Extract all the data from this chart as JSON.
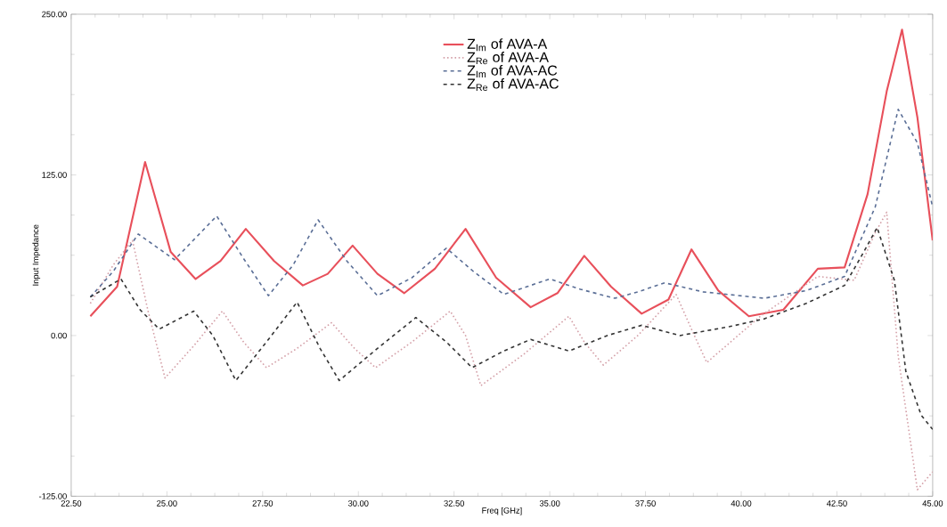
{
  "chart_data": {
    "type": "line",
    "xlabel": "Freq [GHz]",
    "ylabel": "Input Impedance",
    "xlim": [
      22.5,
      45
    ],
    "ylim": [
      -125,
      250
    ],
    "xticks": [
      {
        "value": 22.5,
        "label": "22.50"
      },
      {
        "value": 25,
        "label": "25.00"
      },
      {
        "value": 27.5,
        "label": "27.50"
      },
      {
        "value": 30,
        "label": "30.00"
      },
      {
        "value": 32.5,
        "label": "32.50"
      },
      {
        "value": 35,
        "label": "35.00"
      },
      {
        "value": 37.5,
        "label": "37.50"
      },
      {
        "value": 40,
        "label": "40.00"
      },
      {
        "value": 42.5,
        "label": "42.50"
      },
      {
        "value": 45,
        "label": "45.00"
      }
    ],
    "yticks": [
      {
        "value": -125,
        "label": "-125.00"
      },
      {
        "value": 0,
        "label": "0.00"
      },
      {
        "value": 125,
        "label": "125.00"
      },
      {
        "value": 250,
        "label": "250.00"
      }
    ],
    "legend": "top",
    "grid": false,
    "marker": "none",
    "series": [
      {
        "name": "Z$_{Im}$ of AVA-A",
        "color": "#e8505b",
        "line_style": "solid",
        "x": [
          23.0,
          23.7,
          24.43,
          25.1,
          25.75,
          26.4,
          27.06,
          27.8,
          28.55,
          29.2,
          29.85,
          30.5,
          31.2,
          32.0,
          32.8,
          33.6,
          34.5,
          35.2,
          35.9,
          36.6,
          37.4,
          38.1,
          38.7,
          39.4,
          40.2,
          41.1,
          42.0,
          42.7,
          43.3,
          43.8,
          44.2,
          44.6,
          45.0
        ],
        "values": [
          15,
          38,
          135,
          65,
          44,
          58,
          83,
          58,
          39,
          48,
          70,
          48,
          33,
          52,
          83,
          45,
          22,
          33,
          62,
          38,
          17,
          28,
          67,
          35,
          15,
          20,
          52,
          53,
          110,
          190,
          238,
          170,
          74
        ]
      },
      {
        "name": "Z$_{Re}$ of AVA-A",
        "color": "#d4a0a8",
        "line_style": "dotted",
        "x": [
          23.0,
          23.6,
          24.1,
          24.5,
          24.95,
          25.7,
          26.45,
          27.0,
          27.6,
          28.4,
          29.3,
          29.9,
          30.45,
          31.4,
          32.4,
          32.8,
          33.2,
          34.3,
          35.5,
          35.9,
          36.4,
          37.3,
          38.3,
          38.7,
          39.1,
          40.5,
          42.0,
          42.95,
          43.5,
          43.8,
          44.1,
          44.6,
          45.0
        ],
        "values": [
          25,
          55,
          74,
          20,
          -33,
          -8,
          19,
          -5,
          -25,
          -10,
          10,
          -10,
          -25,
          -5,
          19,
          0,
          -39,
          -15,
          15,
          -5,
          -23,
          0,
          32,
          5,
          -21,
          15,
          46,
          43,
          80,
          96,
          -16,
          -120,
          -106
        ]
      },
      {
        "name": "Z$_{Im}$ of AVA-AC",
        "color": "#5a6e96",
        "line_style": "dashed",
        "x": [
          23.0,
          23.6,
          24.25,
          25.2,
          26.3,
          27.0,
          27.65,
          28.3,
          28.95,
          29.7,
          30.5,
          31.4,
          32.3,
          33.0,
          33.8,
          34.4,
          35.0,
          35.8,
          36.7,
          37.3,
          38.0,
          39.0,
          40.6,
          41.7,
          42.7,
          43.5,
          44.1,
          44.6,
          45.0
        ],
        "values": [
          30,
          50,
          79,
          59,
          93,
          60,
          31,
          55,
          90,
          58,
          31,
          45,
          68,
          50,
          32,
          38,
          44,
          36,
          29,
          34,
          41,
          34,
          29,
          35,
          46,
          100,
          176,
          150,
          100
        ]
      },
      {
        "name": "Z$_{Re}$ of AVA-AC",
        "color": "#333333",
        "line_style": "dashed",
        "x": [
          23.0,
          23.8,
          24.3,
          24.8,
          25.7,
          26.2,
          26.8,
          27.6,
          28.4,
          29.0,
          29.5,
          30.5,
          31.5,
          32.3,
          32.97,
          33.8,
          34.5,
          35.5,
          36.5,
          37.4,
          38.4,
          39.7,
          40.6,
          41.7,
          42.7,
          43.2,
          43.55,
          44.0,
          44.3,
          44.7,
          45.0
        ],
        "values": [
          30,
          44,
          20,
          5,
          19,
          0,
          -35,
          -5,
          26,
          -10,
          -35,
          -10,
          14,
          -5,
          -25,
          -12,
          -3,
          -12,
          0,
          8,
          0,
          7,
          13,
          25,
          39,
          65,
          84,
          43,
          -28,
          -62,
          -73
        ]
      }
    ]
  }
}
